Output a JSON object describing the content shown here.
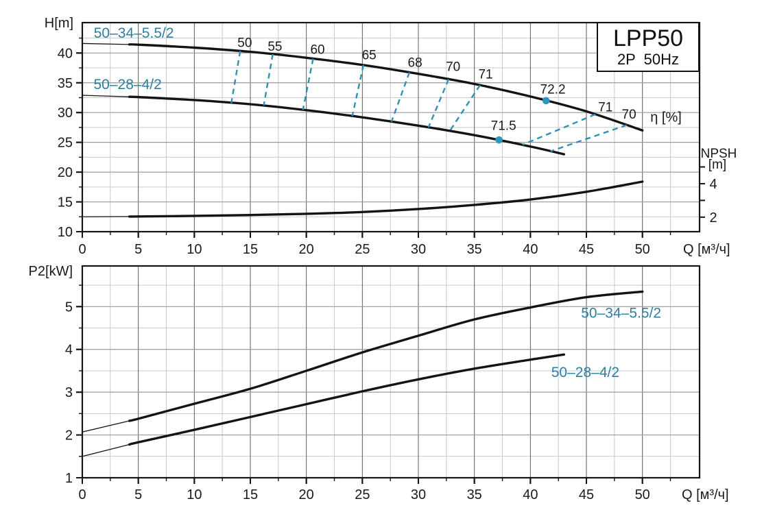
{
  "title_box": {
    "model": "LPP50",
    "spec": "2P  50Hz"
  },
  "colors": {
    "curve": "#141414",
    "axis": "#141414",
    "accent_text": "#2c7f9e",
    "accent_dash": "#3090b0",
    "dot": "#2d97bf",
    "grid_major_h": "#9a9a9a",
    "grid_major_v": "#5a5a5a",
    "grid_minor": "#c9c9c9"
  },
  "chart_data": [
    {
      "type": "line",
      "name": "head-npsh-chart",
      "ylabel": "H[m]",
      "xlabel": "Q [м³/ч]",
      "xlim": [
        0,
        55.1
      ],
      "ylim": [
        10,
        45.1
      ],
      "x_major_ticks": [
        0,
        5,
        10,
        15,
        20,
        25,
        30,
        35,
        40,
        45,
        50
      ],
      "x_minor_step": 2.5,
      "y_major_ticks": [
        10,
        15,
        20,
        25,
        30,
        35,
        40
      ],
      "y_minor_step": 2.5,
      "grid": "on",
      "series": [
        {
          "name": "50-34-5.5/2",
          "label": "50–34–5.5/2",
          "thin_until": 4.2,
          "points": [
            [
              0,
              41.6
            ],
            [
              5,
              41.4
            ],
            [
              10,
              40.9
            ],
            [
              15,
              40.2
            ],
            [
              20,
              39.2
            ],
            [
              25,
              38.0
            ],
            [
              30,
              36.5
            ],
            [
              35,
              34.8
            ],
            [
              40,
              32.7
            ],
            [
              45,
              30.2
            ],
            [
              50,
              27.0
            ]
          ],
          "label_at": [
            4.6,
            43.35
          ]
        },
        {
          "name": "50-28-4/2",
          "label": "50–28–4/2",
          "thin_until": 4.2,
          "points": [
            [
              0,
              32.9
            ],
            [
              5,
              32.6
            ],
            [
              10,
              32.1
            ],
            [
              15,
              31.4
            ],
            [
              20,
              30.4
            ],
            [
              25,
              29.2
            ],
            [
              30,
              27.8
            ],
            [
              35,
              26.2
            ],
            [
              40,
              24.3
            ],
            [
              43,
              23.0
            ]
          ],
          "label_at": [
            4.05,
            34.75
          ]
        },
        {
          "name": "NPSH",
          "label": "",
          "thin_until": 4.2,
          "points": [
            [
              0,
              12.5
            ],
            [
              5,
              12.55
            ],
            [
              10,
              12.65
            ],
            [
              15,
              12.8
            ],
            [
              20,
              13.0
            ],
            [
              25,
              13.3
            ],
            [
              30,
              13.8
            ],
            [
              35,
              14.5
            ],
            [
              40,
              15.4
            ],
            [
              45,
              16.7
            ],
            [
              50,
              18.4
            ]
          ]
        }
      ],
      "efficiency_lines": [
        {
          "label": "50",
          "from": [
            14.1,
            40.35
          ],
          "to": [
            13.3,
            31.6
          ],
          "label_at": [
            14.5,
            41.8
          ]
        },
        {
          "label": "55",
          "from": [
            17.0,
            39.8
          ],
          "to": [
            16.2,
            31.2
          ],
          "label_at": [
            17.2,
            41.2
          ]
        },
        {
          "label": "60",
          "from": [
            20.6,
            39.05
          ],
          "to": [
            19.7,
            30.45
          ],
          "label_at": [
            21.0,
            40.65
          ]
        },
        {
          "label": "65",
          "from": [
            25.1,
            38.0
          ],
          "to": [
            24.1,
            29.4
          ],
          "label_at": [
            25.6,
            39.75
          ]
        },
        {
          "label": "68",
          "from": [
            29.2,
            36.75
          ],
          "to": [
            27.6,
            28.45
          ],
          "label_at": [
            29.7,
            38.5
          ]
        },
        {
          "label": "70",
          "from": [
            32.7,
            35.6
          ],
          "to": [
            30.9,
            27.5
          ],
          "label_at": [
            33.1,
            37.8
          ]
        },
        {
          "label": "71",
          "from": [
            35.5,
            34.6
          ],
          "to": [
            32.8,
            26.9
          ],
          "label_at": [
            36.0,
            36.5
          ]
        },
        {
          "label": "71",
          "from": [
            45.8,
            29.7
          ],
          "to": [
            39.3,
            24.6
          ],
          "label_at": [
            46.7,
            31.0
          ]
        },
        {
          "label": "70",
          "from": [
            48.6,
            27.9
          ],
          "to": [
            41.8,
            23.5
          ],
          "label_at": [
            48.8,
            29.8
          ]
        }
      ],
      "bep_points": [
        {
          "label": "72.2",
          "x": 41.4,
          "y": 32.0,
          "label_at": [
            42.0,
            34.0
          ]
        },
        {
          "label": "71.5",
          "x": 37.2,
          "y": 25.4,
          "label_at": [
            37.6,
            27.9
          ]
        }
      ],
      "eta_label": {
        "text": "η [%]",
        "x": 52.1,
        "y": 29.3
      },
      "right_axis": {
        "title": "NPSH",
        "unit": "[m]",
        "ticks": [
          2,
          3,
          4,
          5
        ],
        "labeled_ticks": [
          2,
          4
        ],
        "h_at_2": 12.44,
        "h_per_unit": 2.81
      }
    },
    {
      "type": "line",
      "name": "power-chart",
      "ylabel": "P2[kW]",
      "xlabel": "Q [м³/ч]",
      "xlim": [
        0,
        55.1
      ],
      "ylim": [
        1,
        5.95
      ],
      "x_major_ticks": [
        0,
        5,
        10,
        15,
        20,
        25,
        30,
        35,
        40,
        45,
        50
      ],
      "x_minor_step": 2.5,
      "y_major_ticks": [
        1,
        2,
        3,
        4,
        5
      ],
      "y_minor_step": 0.5,
      "grid": "on",
      "series": [
        {
          "name": "50-34-5.5/2",
          "label": "50–34–5.5/2",
          "thin_until": 4.2,
          "points": [
            [
              0,
              2.07
            ],
            [
              5,
              2.38
            ],
            [
              10,
              2.73
            ],
            [
              15,
              3.08
            ],
            [
              20,
              3.5
            ],
            [
              25,
              3.93
            ],
            [
              30,
              4.32
            ],
            [
              35,
              4.7
            ],
            [
              40,
              4.98
            ],
            [
              45,
              5.22
            ],
            [
              50,
              5.35
            ]
          ],
          "label_at": [
            48.1,
            4.85
          ]
        },
        {
          "name": "50-28-4/2",
          "label": "50–28–4/2",
          "thin_until": 4.2,
          "points": [
            [
              0,
              1.5
            ],
            [
              5,
              1.83
            ],
            [
              10,
              2.12
            ],
            [
              15,
              2.42
            ],
            [
              20,
              2.72
            ],
            [
              25,
              3.02
            ],
            [
              30,
              3.3
            ],
            [
              35,
              3.55
            ],
            [
              40,
              3.76
            ],
            [
              43,
              3.88
            ]
          ],
          "label_at": [
            44.9,
            3.47
          ]
        }
      ]
    }
  ]
}
